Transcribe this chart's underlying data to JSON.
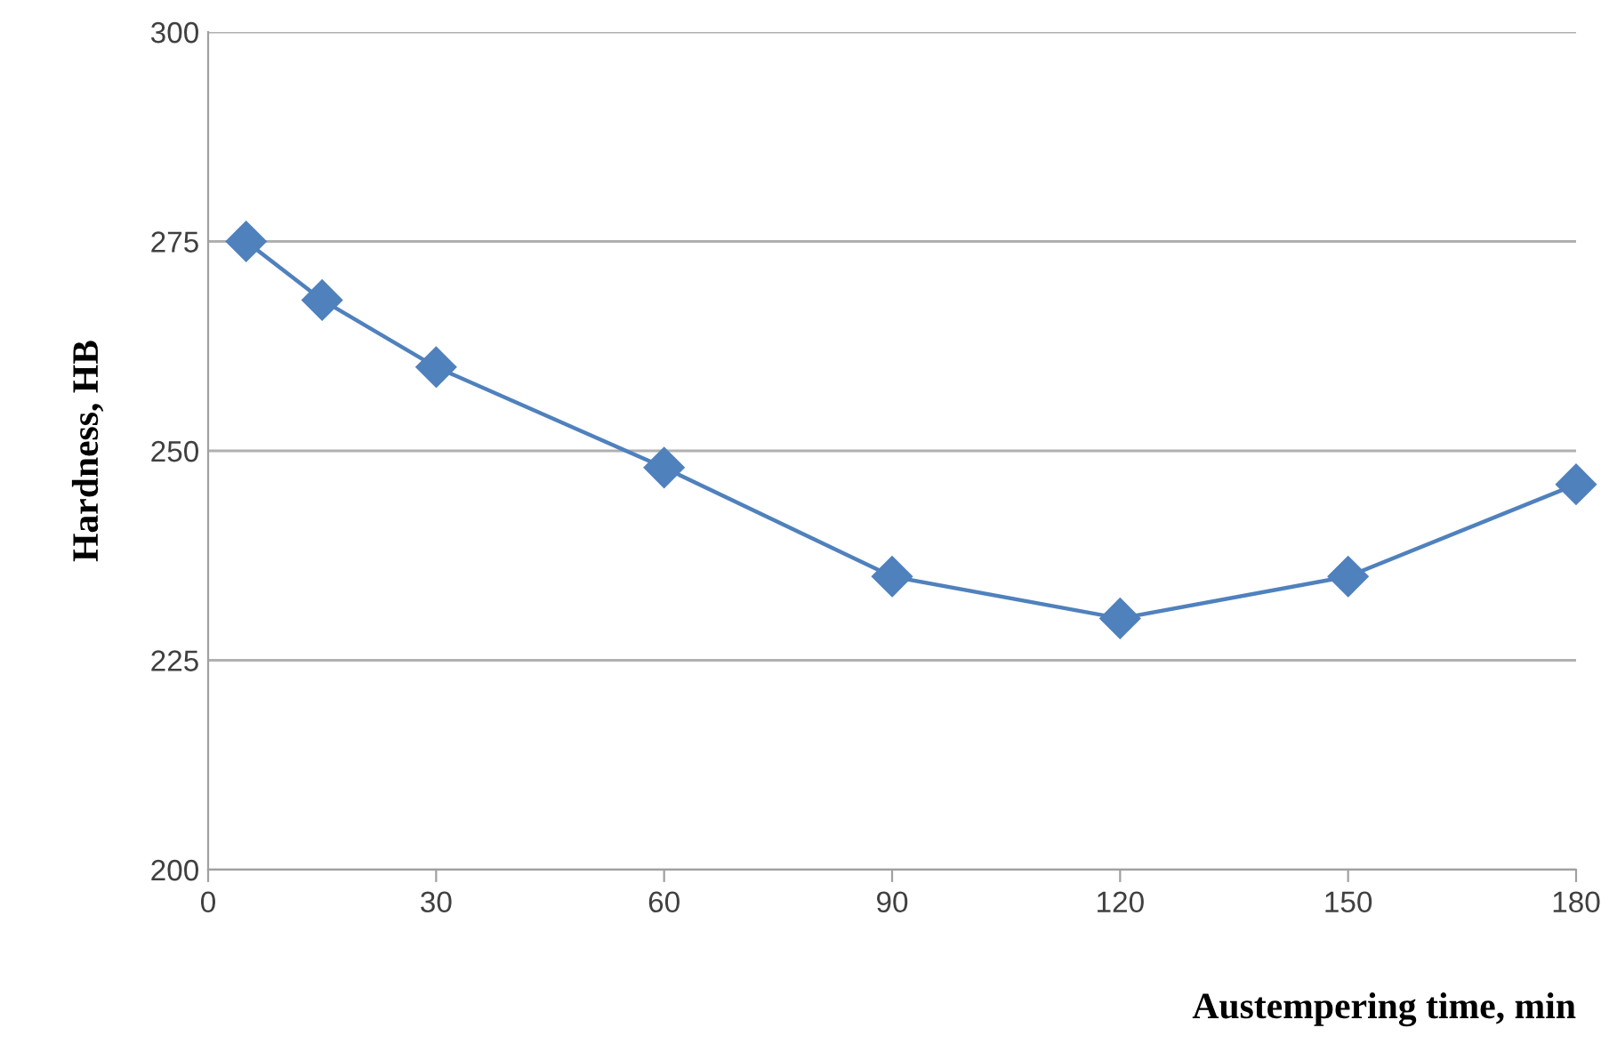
{
  "chart_data": {
    "type": "line",
    "xlabel": "Austempering time, min",
    "ylabel": "Hardness, HB",
    "x": [
      5,
      15,
      30,
      60,
      90,
      120,
      150,
      180
    ],
    "series": [
      {
        "color": "#4f81bd",
        "values": [
          275,
          268,
          260,
          248,
          235,
          230,
          235,
          246
        ]
      }
    ],
    "xlim": [
      0,
      180
    ],
    "xticks": [
      0,
      30,
      60,
      90,
      120,
      150,
      180
    ],
    "ylim": [
      200,
      300
    ],
    "yticks": [
      200,
      225,
      250,
      275,
      300
    ],
    "grid": "y",
    "marker": "diamond",
    "line_style": "solid",
    "legend": false
  }
}
